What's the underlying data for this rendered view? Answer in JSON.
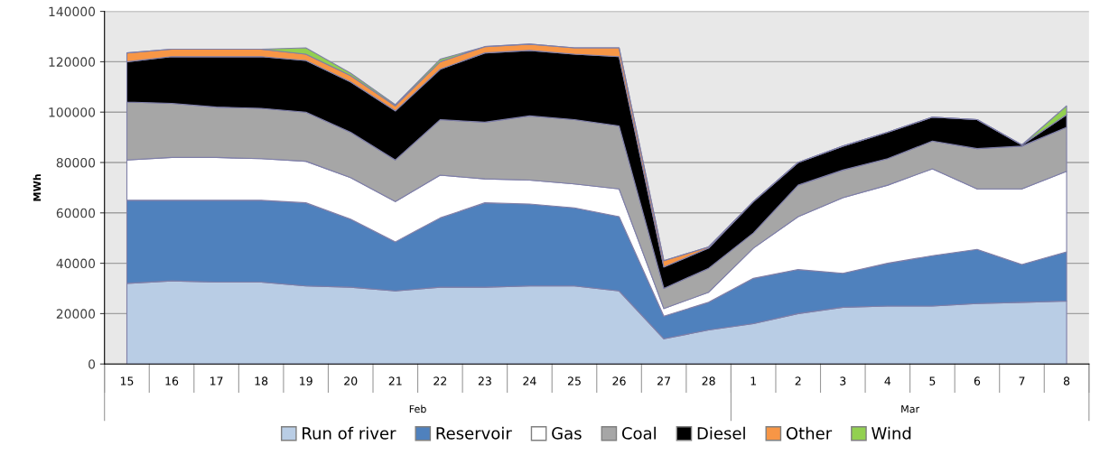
{
  "chart_data": {
    "type": "area",
    "stacked": true,
    "ylabel": "MWh",
    "categories": [
      "15",
      "16",
      "17",
      "18",
      "19",
      "20",
      "21",
      "22",
      "23",
      "24",
      "25",
      "26",
      "27",
      "28",
      "1",
      "2",
      "3",
      "4",
      "5",
      "6",
      "7",
      "8"
    ],
    "annotations": [
      "Feb",
      "Mar"
    ],
    "ylim": [
      0,
      140000
    ],
    "yticks": [
      0,
      20000,
      40000,
      60000,
      80000,
      100000,
      120000,
      140000
    ],
    "grid": "y",
    "legend": "bottom",
    "series": [
      {
        "name": "Run of river",
        "color": "#b9cde5",
        "values": [
          32000,
          33000,
          32500,
          32500,
          31000,
          30500,
          29000,
          30500,
          30500,
          31000,
          31000,
          29000,
          10000,
          13500,
          16000,
          20000,
          22500,
          23000,
          23000,
          24000,
          24500,
          25000
        ]
      },
      {
        "name": "Reservoir",
        "color": "#4f81bd",
        "values": [
          33000,
          32000,
          32500,
          32500,
          33000,
          27000,
          19500,
          27500,
          33500,
          32500,
          31000,
          29500,
          9000,
          11000,
          18000,
          17500,
          13500,
          17000,
          20000,
          21500,
          15000,
          19500
        ]
      },
      {
        "name": "Gas",
        "color": "#ffffff",
        "values": [
          16000,
          17000,
          17000,
          16500,
          16500,
          16500,
          16000,
          17000,
          9500,
          9500,
          9500,
          11000,
          3000,
          4000,
          12000,
          21000,
          30000,
          31000,
          34500,
          24000,
          30000,
          32000
        ]
      },
      {
        "name": "Coal",
        "color": "#a6a6a6",
        "values": [
          23000,
          21500,
          20000,
          20000,
          19500,
          18000,
          16500,
          22000,
          22500,
          25500,
          25500,
          25000,
          8000,
          9500,
          6000,
          12500,
          11000,
          10500,
          11000,
          16000,
          17000,
          17500
        ]
      },
      {
        "name": "Diesel",
        "color": "#000000",
        "values": [
          16000,
          18500,
          20000,
          20500,
          20500,
          20000,
          19500,
          20000,
          27500,
          26000,
          26000,
          27500,
          8500,
          8000,
          12500,
          9000,
          9500,
          10500,
          9500,
          11500,
          500,
          5000
        ]
      },
      {
        "name": "Other",
        "color": "#f79646",
        "values": [
          3500,
          3000,
          3000,
          3000,
          2500,
          2500,
          2000,
          3000,
          2500,
          2500,
          2500,
          3500,
          2500,
          500,
          0,
          0,
          0,
          0,
          0,
          0,
          0,
          0
        ]
      },
      {
        "name": "Wind",
        "color": "#92d050",
        "values": [
          0,
          0,
          0,
          0,
          2500,
          1000,
          500,
          1000,
          0,
          0,
          0,
          0,
          0,
          0,
          0,
          0,
          0,
          0,
          0,
          0,
          0,
          3500
        ]
      }
    ]
  }
}
